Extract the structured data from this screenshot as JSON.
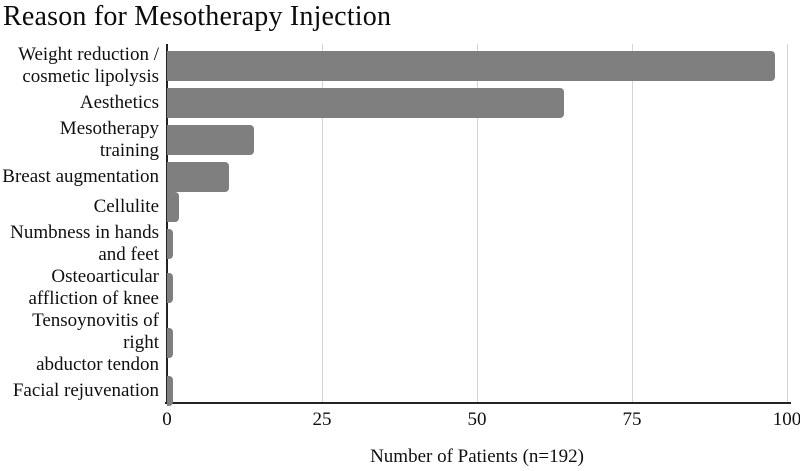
{
  "chart_data": {
    "type": "bar",
    "orientation": "horizontal",
    "title": "Reason for Mesotherapy Injection",
    "xlabel": "Number of Patients (n=192)",
    "ylabel": "",
    "xlim": [
      0,
      100
    ],
    "xticks": [
      0,
      25,
      50,
      75,
      100
    ],
    "xtick_labels": [
      "0",
      "25",
      "50",
      "75",
      "100"
    ],
    "grid": true,
    "legend": false,
    "categories": [
      "Weight reduction / cosmetic lipolysis",
      "Aesthetics",
      "Mesotherapy training",
      "Breast augmentation",
      "Cellulite",
      "Numbness in hands and feet",
      "Osteoarticular affliction of knee",
      "Tensoynovitis of right abductor tendon",
      "Facial rejuvenation"
    ],
    "category_label_lines": [
      [
        "Weight reduction /",
        "cosmetic lipolysis"
      ],
      [
        "Aesthetics"
      ],
      [
        "Mesotherapy training"
      ],
      [
        "Breast augmentation"
      ],
      [
        "Cellulite"
      ],
      [
        "Numbness in hands",
        "and feet"
      ],
      [
        "Osteoarticular",
        "affliction of knee"
      ],
      [
        "Tensoynovitis of right",
        "abductor tendon"
      ],
      [
        "Facial rejuvenation"
      ]
    ],
    "values": [
      98,
      64,
      14,
      10,
      2,
      1,
      1,
      1,
      1
    ],
    "colors": {
      "bar": "#7f7f7f",
      "gridline": "#d4d4d4",
      "axis": "#232323",
      "text": "#0f0f0f"
    }
  }
}
